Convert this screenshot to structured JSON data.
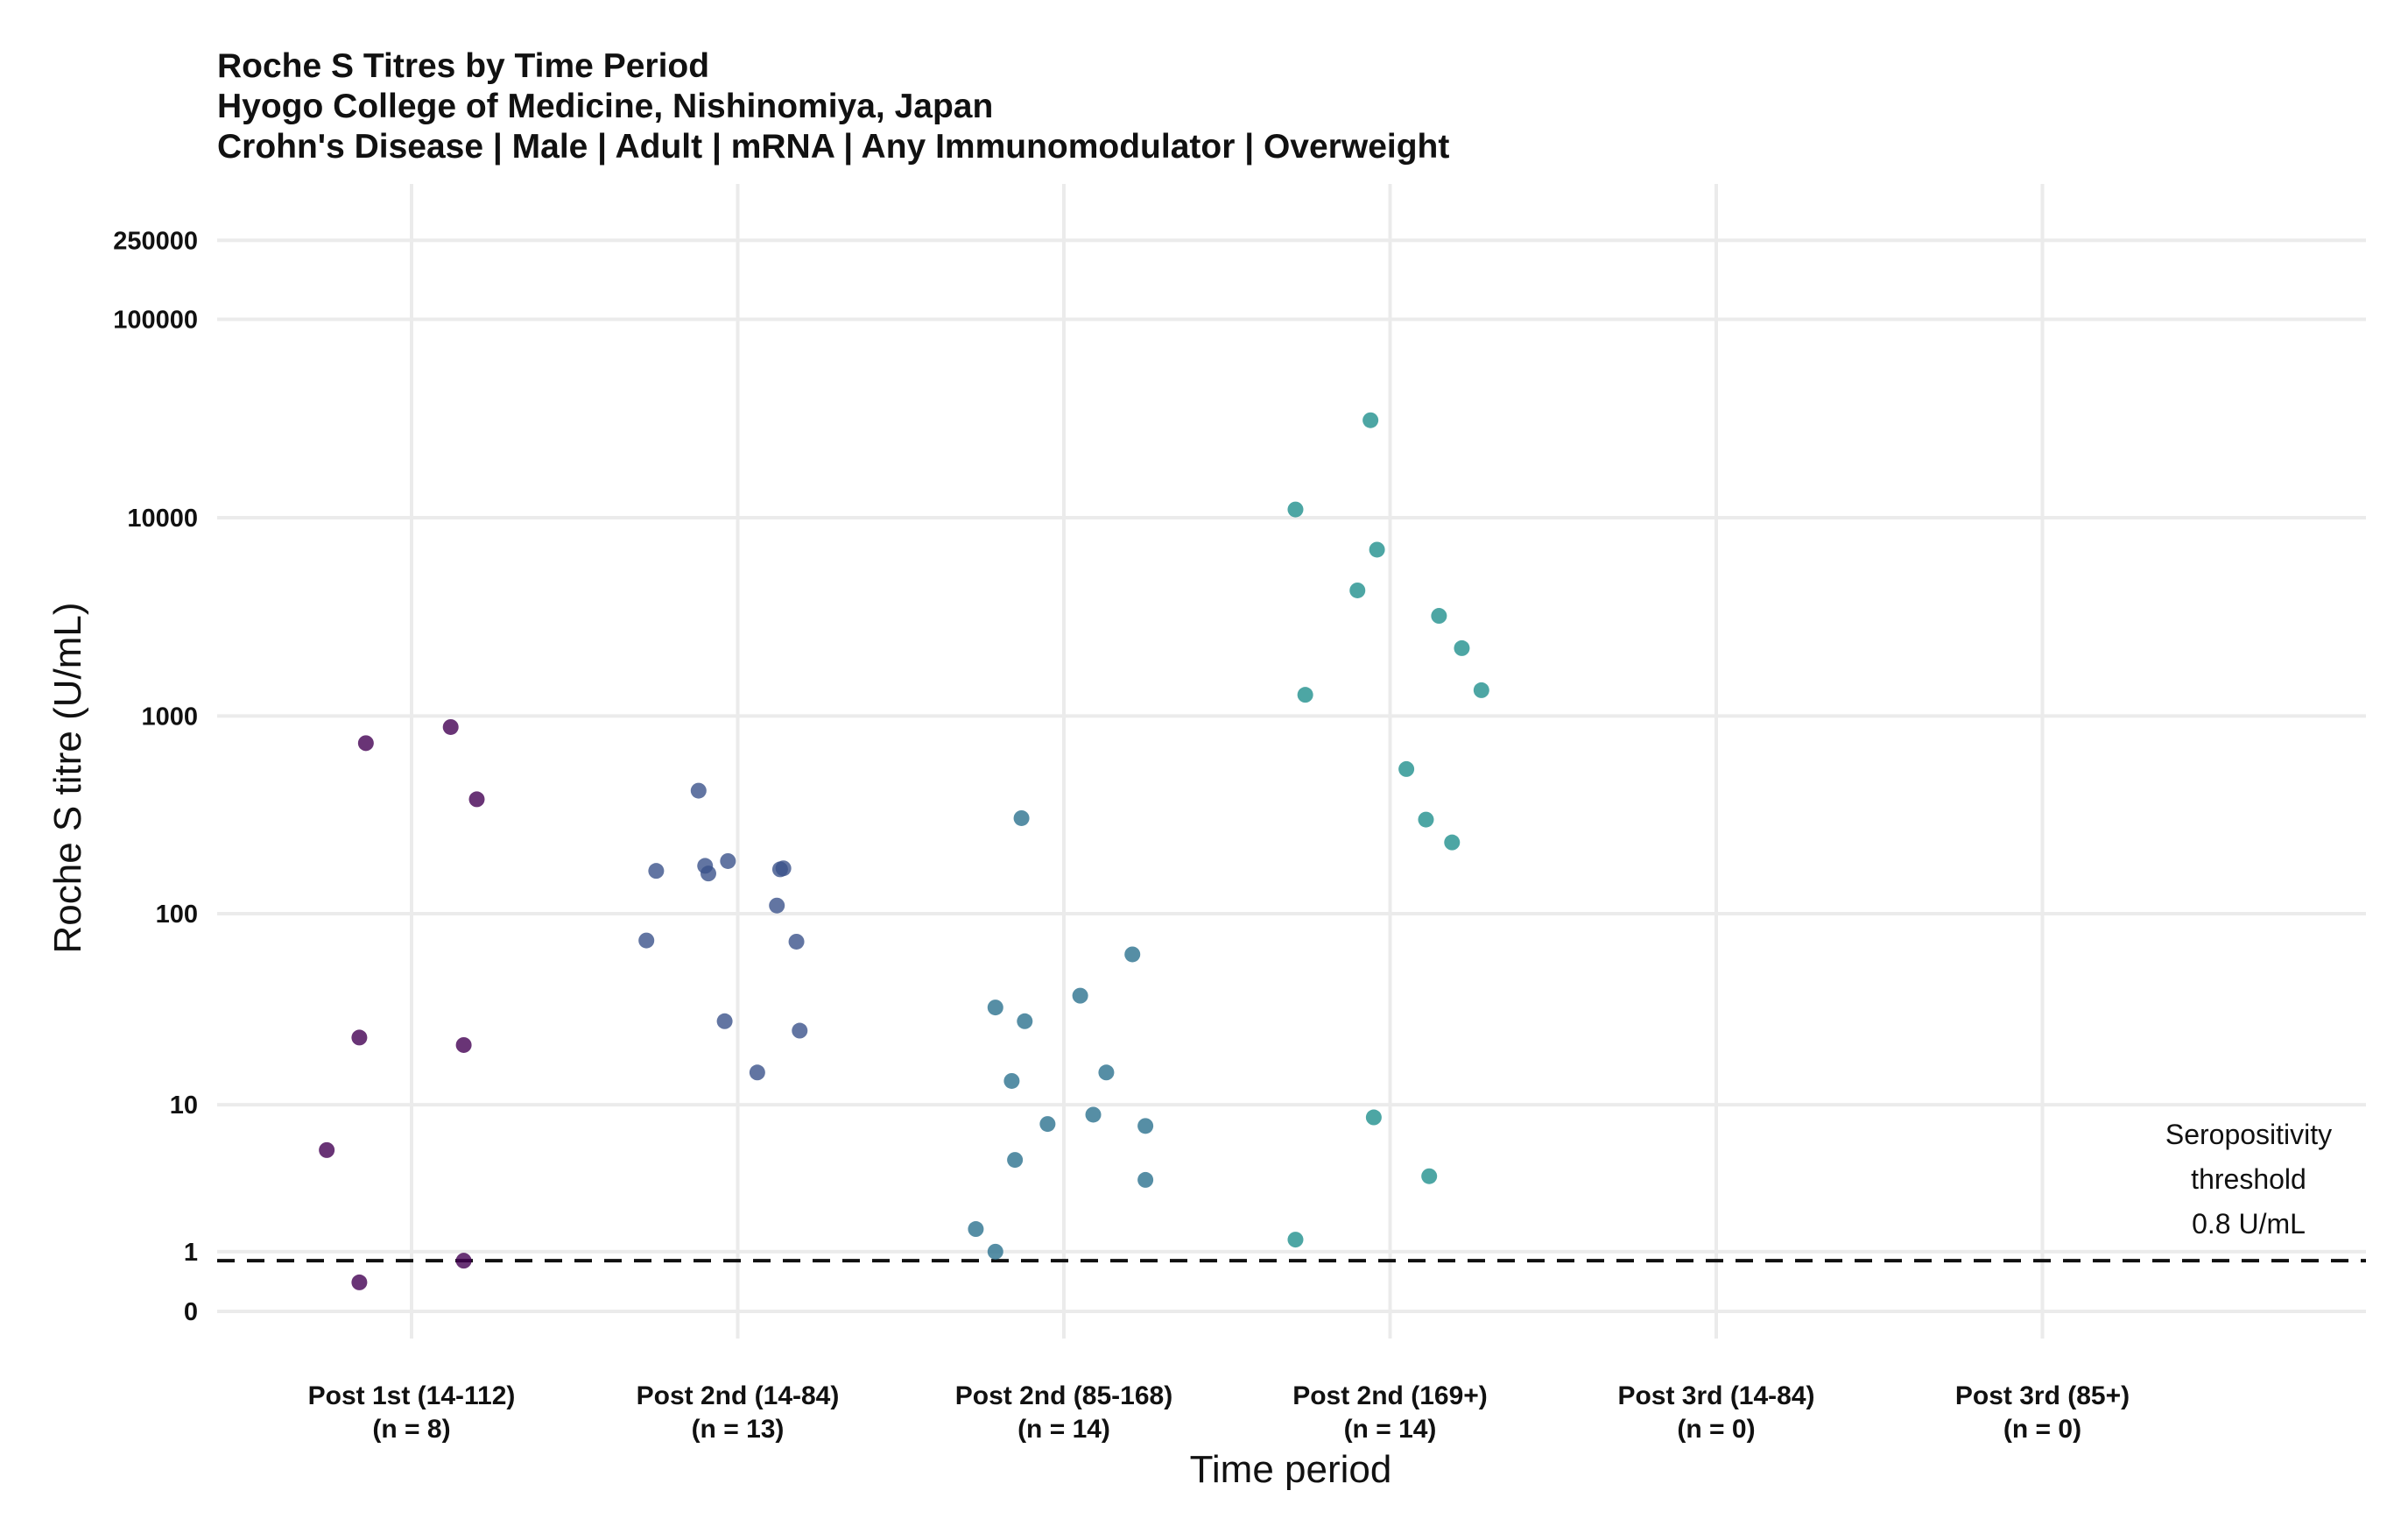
{
  "chart_data": {
    "type": "scatter",
    "title_lines": [
      "Roche S Titres by Time Period",
      "Hyogo College of Medicine, Nishinomiya, Japan",
      "Crohn's Disease | Male | Adult | mRNA | Any Immunomodulator | Overweight"
    ],
    "xlabel": "Time period",
    "ylabel": "Roche S titre (U/mL)",
    "y_scale": "pseudo-log",
    "y_ticks": [
      0,
      1,
      10,
      100,
      1000,
      10000,
      100000,
      250000
    ],
    "y_tick_labels": [
      "0",
      "1",
      "10",
      "100",
      "1000",
      "10000",
      "100000",
      "250000"
    ],
    "grid": true,
    "threshold": {
      "value": 0.8,
      "style": "dashed",
      "label_lines": [
        "Seropositivity",
        "threshold",
        "0.8 U/mL"
      ]
    },
    "categories": [
      {
        "label": "Post 1st (14-112)",
        "n_label": "(n = 8)"
      },
      {
        "label": "Post 2nd (14-84)",
        "n_label": "(n = 13)"
      },
      {
        "label": "Post 2nd (85-168)",
        "n_label": "(n = 14)"
      },
      {
        "label": "Post 2nd (169+)",
        "n_label": "(n = 14)"
      },
      {
        "label": "Post 3rd (14-84)",
        "n_label": "(n = 0)"
      },
      {
        "label": "Post 3rd (85+)",
        "n_label": "(n = 0)"
      }
    ],
    "series": [
      {
        "category_index": 0,
        "color": "#440154",
        "points": [
          {
            "jitter": -0.26,
            "y": 5.5
          },
          {
            "jitter": -0.14,
            "y": 730
          },
          {
            "jitter": -0.16,
            "y": 23
          },
          {
            "jitter": -0.16,
            "y": 0.4
          },
          {
            "jitter": 0.12,
            "y": 880
          },
          {
            "jitter": 0.2,
            "y": 380
          },
          {
            "jitter": 0.16,
            "y": 21
          },
          {
            "jitter": 0.16,
            "y": 0.8
          }
        ]
      },
      {
        "category_index": 1,
        "color": "#3b528b",
        "points": [
          {
            "jitter": -0.12,
            "y": 420
          },
          {
            "jitter": -0.25,
            "y": 165
          },
          {
            "jitter": -0.1,
            "y": 175
          },
          {
            "jitter": -0.09,
            "y": 160
          },
          {
            "jitter": -0.03,
            "y": 185
          },
          {
            "jitter": 0.13,
            "y": 168
          },
          {
            "jitter": 0.14,
            "y": 170
          },
          {
            "jitter": 0.12,
            "y": 110
          },
          {
            "jitter": -0.28,
            "y": 73
          },
          {
            "jitter": 0.18,
            "y": 72
          },
          {
            "jitter": -0.04,
            "y": 28
          },
          {
            "jitter": 0.19,
            "y": 25
          },
          {
            "jitter": 0.06,
            "y": 15
          }
        ]
      },
      {
        "category_index": 2,
        "color": "#2c728e",
        "points": [
          {
            "jitter": -0.13,
            "y": 305
          },
          {
            "jitter": 0.21,
            "y": 62
          },
          {
            "jitter": 0.05,
            "y": 38
          },
          {
            "jitter": -0.21,
            "y": 33
          },
          {
            "jitter": -0.12,
            "y": 28
          },
          {
            "jitter": 0.13,
            "y": 15
          },
          {
            "jitter": -0.16,
            "y": 13.5
          },
          {
            "jitter": 0.09,
            "y": 8.8
          },
          {
            "jitter": -0.05,
            "y": 7.8
          },
          {
            "jitter": 0.25,
            "y": 7.6
          },
          {
            "jitter": -0.15,
            "y": 4.8
          },
          {
            "jitter": 0.25,
            "y": 3.6
          },
          {
            "jitter": -0.27,
            "y": 1.6
          },
          {
            "jitter": -0.21,
            "y": 1.0
          }
        ]
      },
      {
        "category_index": 3,
        "color": "#21908d",
        "points": [
          {
            "jitter": -0.06,
            "y": 31000
          },
          {
            "jitter": -0.29,
            "y": 11000
          },
          {
            "jitter": -0.04,
            "y": 6900
          },
          {
            "jitter": -0.1,
            "y": 4300
          },
          {
            "jitter": 0.15,
            "y": 3200
          },
          {
            "jitter": 0.22,
            "y": 2200
          },
          {
            "jitter": 0.28,
            "y": 1350
          },
          {
            "jitter": -0.26,
            "y": 1280
          },
          {
            "jitter": 0.05,
            "y": 540
          },
          {
            "jitter": 0.11,
            "y": 300
          },
          {
            "jitter": 0.19,
            "y": 230
          },
          {
            "jitter": -0.05,
            "y": 8.5
          },
          {
            "jitter": 0.12,
            "y": 3.8
          },
          {
            "jitter": -0.29,
            "y": 1.3
          }
        ]
      }
    ]
  }
}
